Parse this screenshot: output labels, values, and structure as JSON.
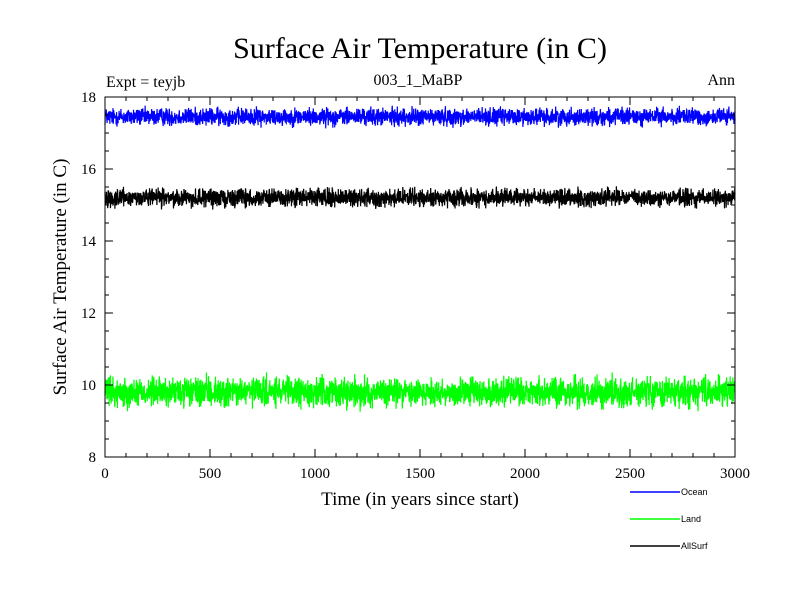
{
  "chart_data": {
    "type": "line",
    "title": "Surface Air Temperature (in C)",
    "subtitle_left": "Expt = teyjb",
    "subtitle_center": "003_1_MaBP",
    "subtitle_right": "Ann",
    "xlabel": "Time (in years since start)",
    "ylabel": "Surface Air Temperature (in C)",
    "xlim": [
      0,
      3000
    ],
    "ylim": [
      8,
      18
    ],
    "x_ticks": [
      0,
      500,
      1000,
      1500,
      2000,
      2500,
      3000
    ],
    "x_tick_labels": [
      "0",
      "500",
      "1000",
      "1500",
      "2000",
      "2500",
      "3000"
    ],
    "y_ticks": [
      8,
      10,
      12,
      14,
      16,
      18
    ],
    "y_tick_labels": [
      "8",
      "10",
      "12",
      "14",
      "16",
      "18"
    ],
    "n_points": 3000,
    "series": [
      {
        "name": "Ocean",
        "color": "#0000ff",
        "mean": 17.45,
        "amplitude": 0.12
      },
      {
        "name": "Land",
        "color": "#00ff00",
        "mean": 9.8,
        "amplitude": 0.2
      },
      {
        "name": "AllSurf",
        "color": "#000000",
        "mean": 15.2,
        "amplitude": 0.12
      }
    ],
    "legend": [
      {
        "label": "Ocean",
        "color": "#0000ff"
      },
      {
        "label": "Land",
        "color": "#00ff00"
      },
      {
        "label": "AllSurf",
        "color": "#000000"
      }
    ]
  }
}
